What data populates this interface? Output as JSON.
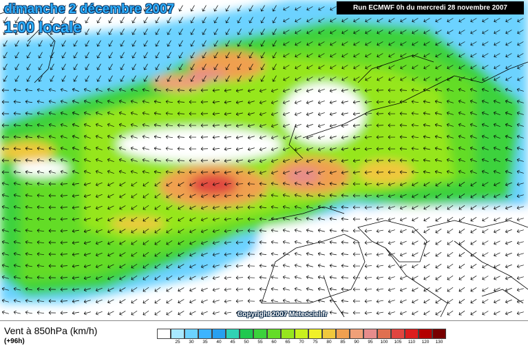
{
  "header": {
    "date_title": "dimanche 2 décembre 2007",
    "time_title": "1:00 locale",
    "run_info": "Run ECMWF 0h du mercredi 28 novembre 2007"
  },
  "map": {
    "copyright": "Copyright 2007 Meteociel.fr",
    "arrow_icon": "wind-arrow",
    "land_outline_color": "#000000"
  },
  "footer": {
    "variable_title": "Vent à 850hPa (km/h)",
    "forecast_offset": "(+96h)"
  },
  "legend": {
    "items": [
      {
        "label": "",
        "color": "#ffffff"
      },
      {
        "label": "25",
        "color": "#a8e8ff"
      },
      {
        "label": "30",
        "color": "#6cd2ff"
      },
      {
        "label": "35",
        "color": "#3cb4ff"
      },
      {
        "label": "40",
        "color": "#28a0f0"
      },
      {
        "label": "45",
        "color": "#30d2b4"
      },
      {
        "label": "50",
        "color": "#20c850"
      },
      {
        "label": "55",
        "color": "#3cd23c"
      },
      {
        "label": "60",
        "color": "#64dc28"
      },
      {
        "label": "65",
        "color": "#96e61e"
      },
      {
        "label": "70",
        "color": "#c8f01e"
      },
      {
        "label": "75",
        "color": "#f0f028"
      },
      {
        "label": "80",
        "color": "#f0c83c"
      },
      {
        "label": "85",
        "color": "#f0a050"
      },
      {
        "label": "90",
        "color": "#f0a078"
      },
      {
        "label": "95",
        "color": "#e68c8c"
      },
      {
        "label": "100",
        "color": "#e07050"
      },
      {
        "label": "105",
        "color": "#e04640"
      },
      {
        "label": "110",
        "color": "#dc1e1e"
      },
      {
        "label": "120",
        "color": "#b40000"
      },
      {
        "label": "130",
        "color": "#780000"
      }
    ]
  }
}
